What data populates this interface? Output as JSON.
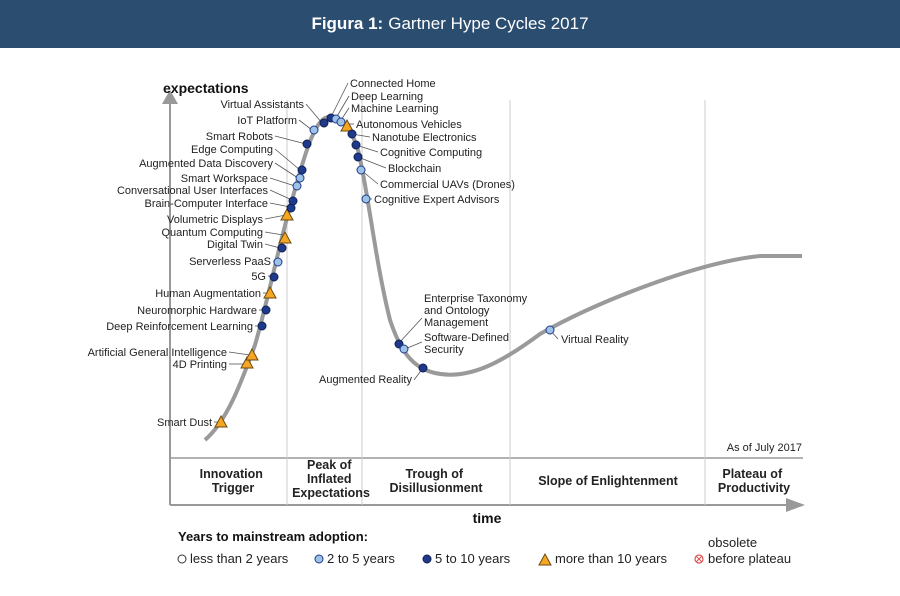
{
  "header": {
    "figure_label": "Figura 1:",
    "title": "Gartner Hype Cycles 2017"
  },
  "chart_data": {
    "type": "scatter",
    "title": "Gartner Hype Cycles 2017",
    "xlabel": "time",
    "ylabel": "expectations",
    "note": "As of July 2017",
    "phases": [
      "Innovation Trigger",
      "Peak of Inflated Expectations",
      "Trough of Disillusionment",
      "Slope of Enlightenment",
      "Plateau of Productivity"
    ],
    "legend": {
      "title": "Years to mainstream adoption:",
      "entries": [
        {
          "key": "lt2",
          "label": "less than 2 years",
          "color": "#ffffff"
        },
        {
          "key": "2to5",
          "label": "2 to 5 years",
          "color": "#9cc3e6"
        },
        {
          "key": "5to10",
          "label": "5 to 10 years",
          "color": "#1f3a8a"
        },
        {
          "key": "gt10",
          "label": "more than 10 years",
          "color": "#f5a623"
        },
        {
          "key": "obsolete",
          "label": "obsolete before plateau",
          "color": "#e05050"
        }
      ]
    },
    "technologies": [
      {
        "name": "Smart Dust",
        "cat": "gt10"
      },
      {
        "name": "4D Printing",
        "cat": "gt10"
      },
      {
        "name": "Artificial General Intelligence",
        "cat": "gt10"
      },
      {
        "name": "Deep Reinforcement Learning",
        "cat": "5to10"
      },
      {
        "name": "Neuromorphic Hardware",
        "cat": "5to10"
      },
      {
        "name": "Human Augmentation",
        "cat": "gt10"
      },
      {
        "name": "5G",
        "cat": "5to10"
      },
      {
        "name": "Serverless PaaS",
        "cat": "2to5"
      },
      {
        "name": "Digital Twin",
        "cat": "5to10"
      },
      {
        "name": "Quantum Computing",
        "cat": "gt10"
      },
      {
        "name": "Volumetric Displays",
        "cat": "gt10"
      },
      {
        "name": "Brain-Computer Interface",
        "cat": "5to10"
      },
      {
        "name": "Conversational User Interfaces",
        "cat": "5to10"
      },
      {
        "name": "Smart Workspace",
        "cat": "2to5"
      },
      {
        "name": "Augmented Data Discovery",
        "cat": "2to5"
      },
      {
        "name": "Edge Computing",
        "cat": "5to10"
      },
      {
        "name": "Smart Robots",
        "cat": "5to10"
      },
      {
        "name": "IoT Platform",
        "cat": "2to5"
      },
      {
        "name": "Virtual Assistants",
        "cat": "5to10"
      },
      {
        "name": "Connected Home",
        "cat": "5to10"
      },
      {
        "name": "Deep Learning",
        "cat": "2to5"
      },
      {
        "name": "Machine Learning",
        "cat": "2to5"
      },
      {
        "name": "Autonomous Vehicles",
        "cat": "gt10"
      },
      {
        "name": "Nanotube Electronics",
        "cat": "5to10"
      },
      {
        "name": "Cognitive Computing",
        "cat": "5to10"
      },
      {
        "name": "Blockchain",
        "cat": "5to10"
      },
      {
        "name": "Commercial UAVs (Drones)",
        "cat": "2to5"
      },
      {
        "name": "Cognitive Expert Advisors",
        "cat": "2to5"
      },
      {
        "name": "Enterprise Taxonomy and Ontology Management",
        "cat": "5to10"
      },
      {
        "name": "Software-Defined Security",
        "cat": "2to5"
      },
      {
        "name": "Augmented Reality",
        "cat": "5to10"
      },
      {
        "name": "Virtual Reality",
        "cat": "2to5"
      }
    ]
  }
}
